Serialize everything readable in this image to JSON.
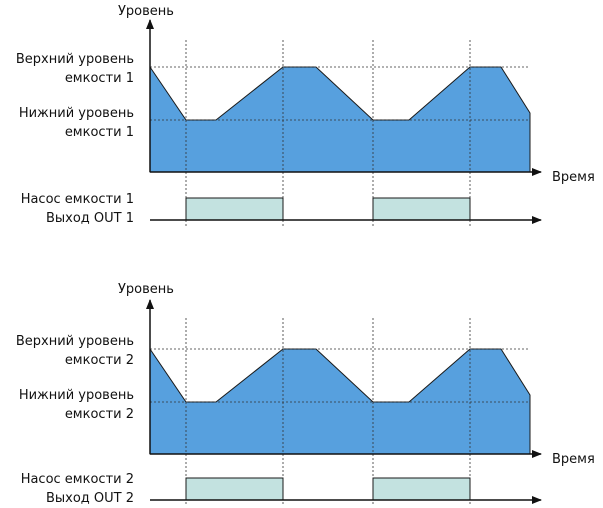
{
  "colors": {
    "level_fill": "#57a0de",
    "level_stroke": "#1a1a1a",
    "pump_fill": "#c3e2e0",
    "axis": "#111111"
  },
  "diagrams": [
    {
      "y_axis_label": "Уровень",
      "x_axis_label": "Время",
      "upper_label_1": "Верхний уровень",
      "upper_label_2": "емкости 1",
      "lower_label_1": "Нижний уровень",
      "lower_label_2": "емкости 1",
      "pump_label_1": "Насос емкости 1",
      "pump_label_2": "Выход OUT 1"
    },
    {
      "y_axis_label": "Уровень",
      "x_axis_label": "Время",
      "upper_label_1": "Верхний уровень",
      "upper_label_2": "емкости 2",
      "lower_label_1": "Нижний уровень",
      "lower_label_2": "емкости 2",
      "pump_label_1": "Насос емкости 2",
      "pump_label_2": "Выход OUT 2"
    }
  ],
  "level_cycle": [
    "upper",
    "lower",
    "lower",
    "upper",
    "upper",
    "lower",
    "lower",
    "upper",
    "upper",
    "mid"
  ],
  "pump_states": [
    "off",
    "on",
    "off",
    "on",
    "off"
  ]
}
